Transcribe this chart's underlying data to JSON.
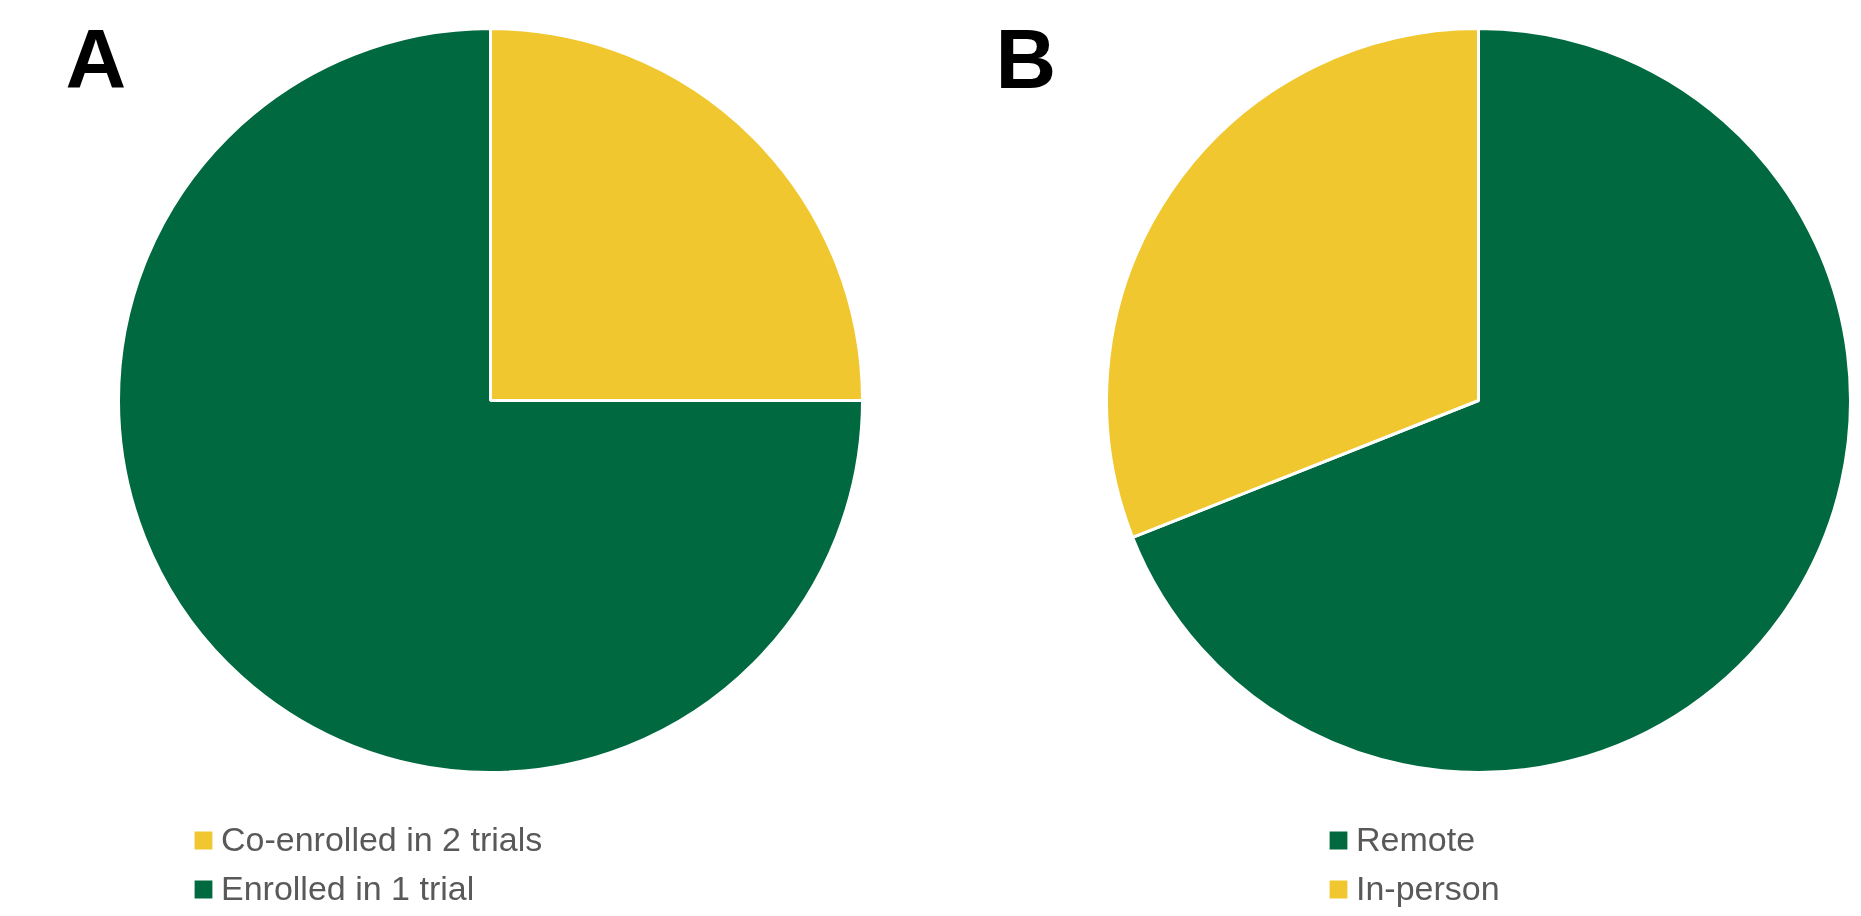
{
  "chart_data": [
    {
      "type": "pie",
      "title": "A",
      "categories": [
        "Co-enrolled in 2 trials",
        "Enrolled in 1 trial"
      ],
      "values": [
        25,
        75
      ],
      "colors": [
        "#f0c72f",
        "#006940"
      ],
      "legend": "bottom"
    },
    {
      "type": "pie",
      "title": "B",
      "categories": [
        "Remote",
        "In-person"
      ],
      "values": [
        69,
        31
      ],
      "colors": [
        "#006940",
        "#f0c72f"
      ],
      "legend": "bottom"
    }
  ]
}
